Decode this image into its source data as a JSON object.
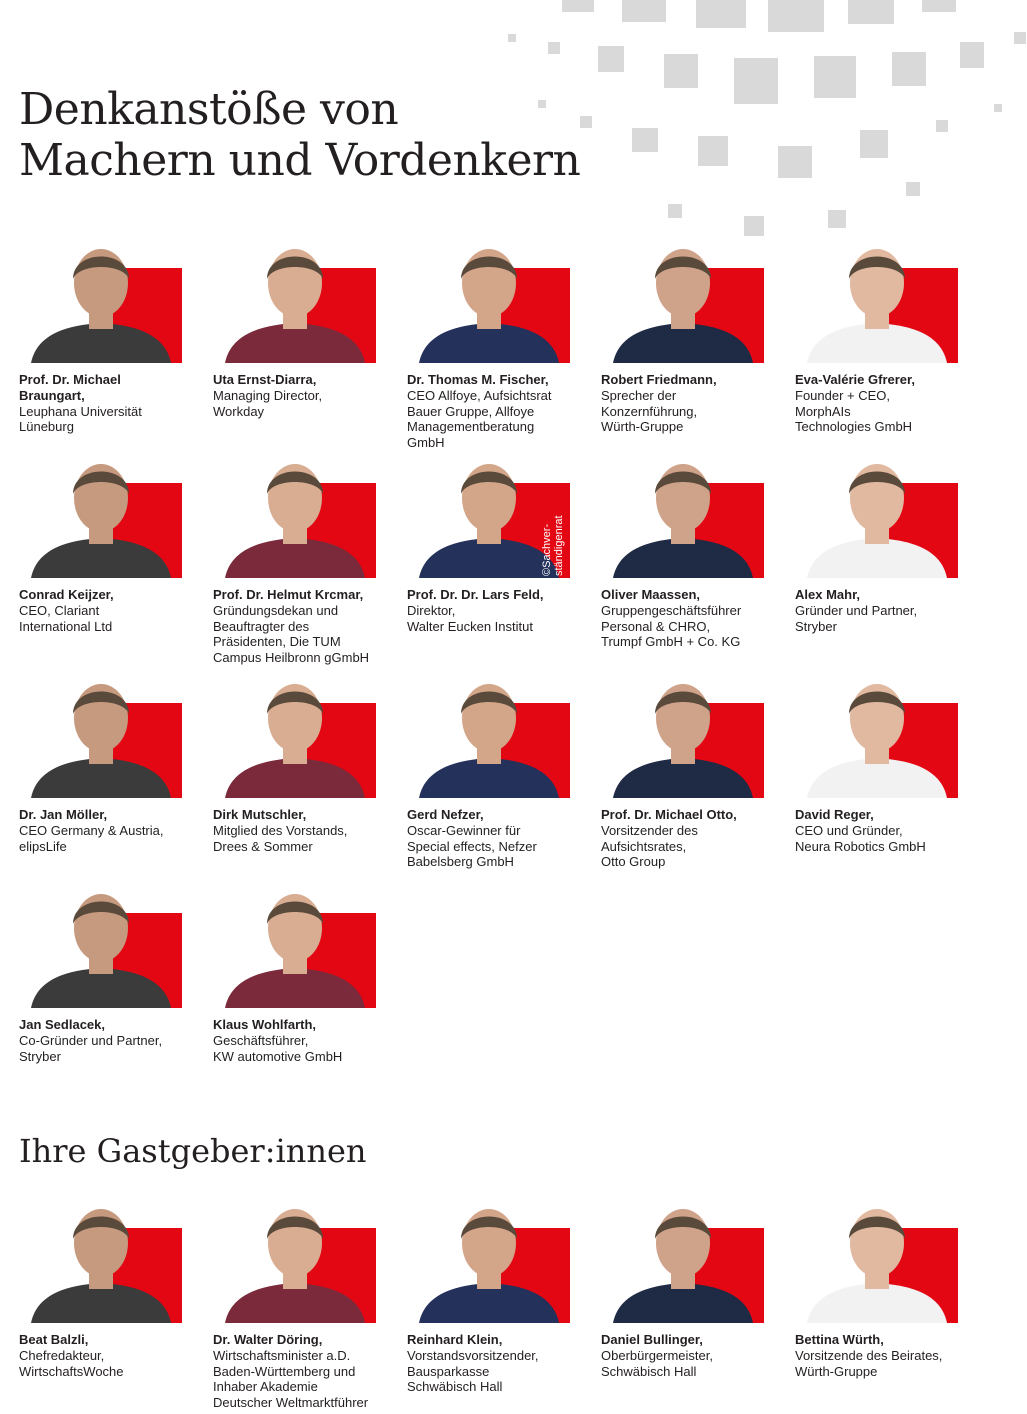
{
  "header": {
    "title_lines": [
      "Denkanstöße von",
      "Machern und Vordenkern"
    ]
  },
  "speakers": [
    {
      "name": "Prof. Dr. Michael Braungart,",
      "role": [
        "Leuphana Universität",
        "Lüneburg"
      ]
    },
    {
      "name": "Uta Ernst-Diarra,",
      "role": [
        "Managing Director,",
        "Workday"
      ]
    },
    {
      "name": "Dr. Thomas M. Fischer,",
      "role": [
        "CEO Allfoye, Aufsichtsrat",
        "Bauer Gruppe, Allfoye",
        "Managementberatung",
        "GmbH"
      ]
    },
    {
      "name": "Robert Friedmann,",
      "role": [
        "Sprecher der",
        "Konzernführung,",
        "Würth-Gruppe"
      ]
    },
    {
      "name": "Eva-Valérie Gfrerer,",
      "role": [
        "Founder + CEO,",
        "MorphAIs",
        "Technologies GmbH"
      ]
    },
    {
      "name": "Conrad Keijzer,",
      "role": [
        "CEO, Clariant",
        "International Ltd"
      ]
    },
    {
      "name": "Prof. Dr. Helmut Krcmar,",
      "role": [
        "Gründungsdekan und",
        "Beauftragter des",
        "Präsidenten, Die TUM",
        "Campus Heilbronn gGmbH"
      ]
    },
    {
      "name": "Prof. Dr. Dr. Lars Feld,",
      "role": [
        "Direktor,",
        "Walter Eucken Institut"
      ],
      "photo_credit": [
        "©Sachver-",
        "ständigenrat"
      ]
    },
    {
      "name": "Oliver Maassen,",
      "role": [
        "Gruppengeschäftsführer",
        "Personal & CHRO,",
        "Trumpf GmbH + Co. KG"
      ]
    },
    {
      "name": "Alex Mahr,",
      "role": [
        "Gründer und Partner,",
        "Stryber"
      ]
    },
    {
      "name": "Dr. Jan Möller,",
      "role": [
        "CEO Germany & Austria,",
        "elipsLife"
      ]
    },
    {
      "name": "Dirk Mutschler,",
      "role": [
        "Mitglied des Vorstands,",
        "Drees & Sommer"
      ]
    },
    {
      "name": "Gerd Nefzer,",
      "role": [
        "Oscar-Gewinner für",
        "Special effects, Nefzer",
        "Babelsberg GmbH"
      ]
    },
    {
      "name": "Prof. Dr. Michael Otto,",
      "role": [
        "Vorsitzender des",
        "Aufsichtsrates,",
        "Otto Group"
      ]
    },
    {
      "name": "David Reger,",
      "role": [
        "CEO und Gründer,",
        "Neura Robotics GmbH"
      ]
    },
    {
      "name": "Jan Sedlacek,",
      "role": [
        "Co-Gründer und Partner,",
        "Stryber"
      ]
    },
    {
      "name": "Klaus Wohlfarth,",
      "role": [
        "Geschäftsführer,",
        "KW automotive GmbH"
      ]
    }
  ],
  "hosts_title": "Ihre Gastgeber:innen",
  "hosts": [
    {
      "name": "Beat Balzli,",
      "role": [
        "Chefredakteur,",
        "WirtschaftsWoche"
      ]
    },
    {
      "name": "Dr. Walter Döring,",
      "role": [
        "Wirtschaftsminister a.D.",
        "Baden-Württemberg und",
        "Inhaber Akademie",
        "Deutscher Weltmarktführer"
      ]
    },
    {
      "name": "Reinhard Klein,",
      "role": [
        "Vorstandsvorsitzender,",
        "Bausparkasse",
        "Schwäbisch Hall"
      ]
    },
    {
      "name": "Daniel Bullinger,",
      "role": [
        "Oberbürgermeister,",
        "Schwäbisch Hall"
      ]
    },
    {
      "name": "Bettina Würth,",
      "role": [
        "Vorsitzende des Beirates,",
        "Würth-Gruppe"
      ]
    }
  ]
}
